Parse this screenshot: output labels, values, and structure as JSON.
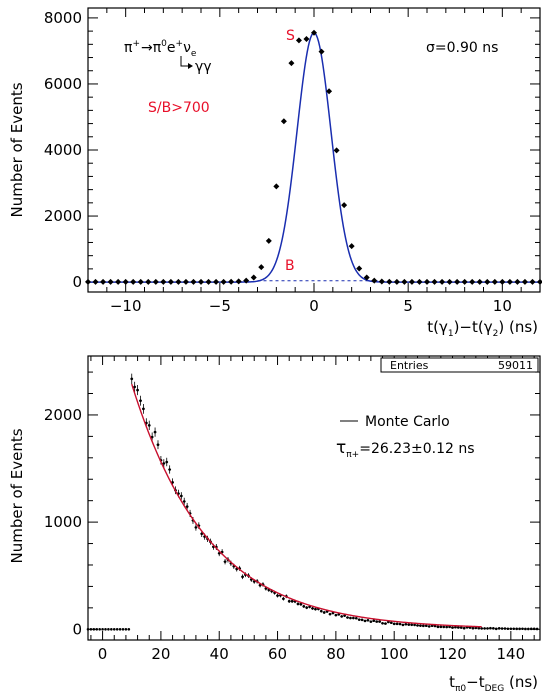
{
  "chart_data": [
    {
      "type": "line",
      "xlabel": {
        "prefix": "t(γ",
        "sub1": "1",
        "mid": ")−t(γ",
        "sub2": "2",
        "suffix": ") (ns)"
      },
      "ylabel": "Number of Events",
      "xlim": [
        -12,
        12
      ],
      "ylim": [
        -300,
        8300
      ],
      "xticks": [
        -10,
        -5,
        0,
        5,
        10
      ],
      "xtick_labels": [
        "−10",
        "−5",
        "0",
        "5",
        "10"
      ],
      "yticks": [
        0,
        2000,
        4000,
        6000,
        8000
      ],
      "ytick_labels": [
        "0",
        "2000",
        "4000",
        "6000",
        "8000"
      ],
      "fit": {
        "name": "Gaussian fit",
        "color": "#1a2eb0",
        "amplitude": 7550,
        "mean": 0,
        "sigma": 0.9
      },
      "background_level": 40,
      "annotations": {
        "decay_text": {
          "pi": "π",
          "plus": "+",
          "arrow": "→",
          "pi0": "π",
          "zero": "0",
          "e": "e",
          "nu": "ν",
          "nu_sub": "e"
        },
        "decay_gg": "γγ",
        "sigma_label": "σ=0.90 ns",
        "sb_label": "S/B>700",
        "s_label": "S",
        "b_label": "B"
      },
      "series": [
        {
          "points": {
            "x": [
              -12,
              -11.6,
              -11.2,
              -10.8,
              -10.4,
              -10,
              -9.6,
              -9.2,
              -8.8,
              -8.4,
              -8,
              -7.6,
              -7.2,
              -6.8,
              -6.4,
              -6,
              -5.6,
              -5.2,
              -4.8,
              -4.4,
              -4,
              -3.6,
              -3.2,
              -2.8,
              -2.4,
              -2,
              -1.6,
              -1.2,
              -0.8,
              -0.4,
              0,
              0.4,
              0.8,
              1.2,
              1.6,
              2,
              2.4,
              2.8,
              3.2,
              3.6,
              4,
              4.4,
              4.8,
              5.2,
              5.6,
              6,
              6.4,
              6.8,
              7.2,
              7.6,
              8,
              8.4,
              8.8,
              9.2,
              9.6,
              10,
              10.4,
              10.8,
              11.2,
              11.6,
              12
            ],
            "y": [
              5,
              5,
              5,
              5,
              5,
              5,
              5,
              5,
              5,
              5,
              5,
              5,
              5,
              5,
              5,
              5,
              5,
              5,
              8,
              12,
              20,
              45,
              140,
              455,
              1250,
              2900,
              4870,
              6630,
              7320,
              7360,
              7550,
              6980,
              5780,
              3990,
              2330,
              1090,
              410,
              140,
              45,
              18,
              10,
              6,
              5,
              5,
              5,
              5,
              5,
              5,
              5,
              5,
              5,
              5,
              5,
              5,
              5,
              5,
              5,
              5,
              5,
              5,
              5
            ]
          }
        }
      ]
    },
    {
      "type": "scatter",
      "xlabel": {
        "prefix": "t",
        "sub1": "π0",
        "mid": "−t",
        "sub2": "DEG",
        "suffix": " (ns)"
      },
      "ylabel": "Number of Events",
      "xlim": [
        -5,
        150
      ],
      "ylim": [
        -100,
        2550
      ],
      "xticks": [
        0,
        20,
        40,
        60,
        80,
        100,
        120,
        140
      ],
      "xtick_labels": [
        "0",
        "20",
        "40",
        "60",
        "80",
        "100",
        "120",
        "140"
      ],
      "yticks": [
        0,
        1000,
        2000
      ],
      "ytick_labels": [
        "0",
        "1000",
        "2000"
      ],
      "stats_box": {
        "label": "Entries",
        "value": "59011"
      },
      "legend": {
        "entry": "Monte Carlo",
        "tau_symbol": "τ",
        "tau_sub": "π+",
        "tau_value": "=26.23±0.12 ns"
      },
      "fit": {
        "name": "Exponential fit",
        "color": "#c8102e",
        "amplitude": 3350,
        "tau": 26.23,
        "x_start": 10,
        "x_end": 130
      },
      "series": [
        {
          "x_start": -5,
          "x_step": 1,
          "values": [
            0,
            0,
            0,
            0,
            0,
            0,
            0,
            0,
            0,
            0,
            0,
            0,
            0,
            0,
            0,
            2337,
            2262,
            2232,
            2133,
            2057,
            1925,
            1903,
            1794,
            1840,
            1722,
            1577,
            1548,
            1561,
            1491,
            1371,
            1297,
            1266,
            1244,
            1193,
            1145,
            1081,
            1016,
            951,
            967,
            891,
            865,
            844,
            817,
            770,
            768,
            709,
            721,
            631,
            649,
            616,
            588,
            563,
            568,
            490,
            509,
            501,
            464,
            446,
            448,
            411,
            418,
            381,
            368,
            356,
            341,
            314,
            316,
            285,
            308,
            262,
            262,
            260,
            237,
            234,
            214,
            202,
            210,
            195,
            188,
            190,
            169,
            157,
            166,
            141,
            152,
            132,
            139,
            120,
            127,
            110,
            105,
            105,
            103,
            90,
            88,
            78,
            84,
            71,
            80,
            72,
            72,
            56,
            53,
            68,
            61,
            51,
            51,
            49,
            41,
            47,
            43,
            42,
            41,
            36,
            34,
            32,
            33,
            27,
            33,
            31,
            23,
            23,
            22,
            21,
            23,
            16,
            19,
            17,
            16,
            10,
            18,
            16,
            10,
            13,
            10,
            8,
            8,
            8,
            10,
            9,
            4,
            9,
            7,
            7,
            5,
            5,
            5,
            4,
            4,
            5,
            3,
            3,
            4,
            4,
            3
          ]
        }
      ]
    }
  ]
}
